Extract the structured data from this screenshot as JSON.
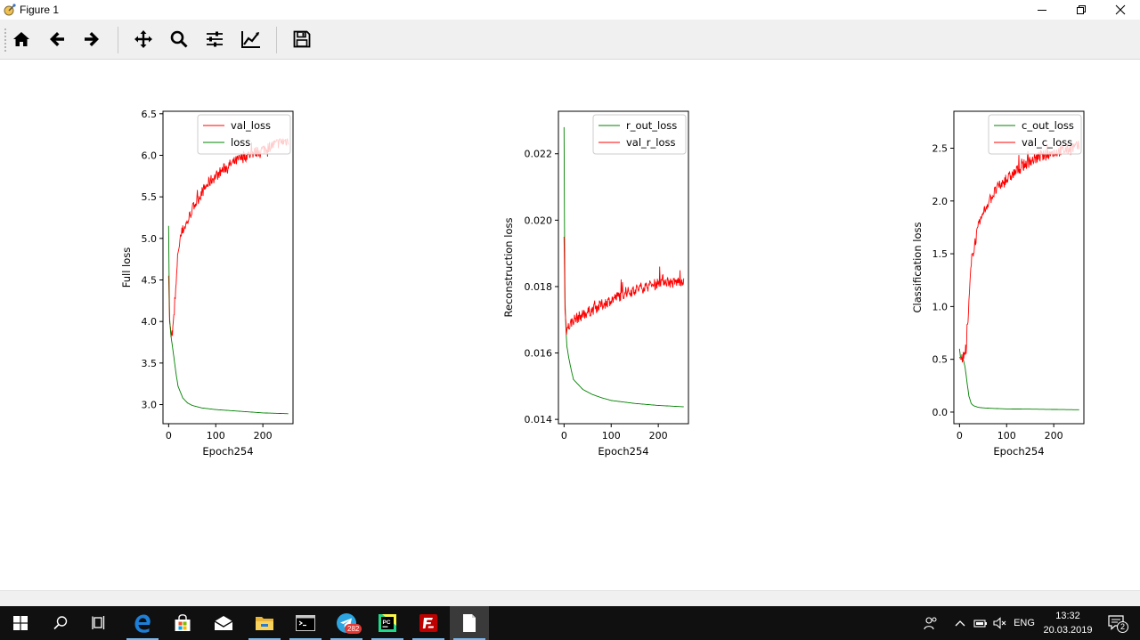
{
  "window": {
    "title": "Figure 1",
    "icon": "matplotlib-figure-icon",
    "controls": [
      "minimize-icon",
      "restore-icon",
      "close-icon"
    ]
  },
  "toolbar": {
    "buttons": [
      {
        "name": "home-button",
        "icon": "home-icon"
      },
      {
        "name": "back-button",
        "icon": "arrow-left-icon"
      },
      {
        "name": "forward-button",
        "icon": "arrow-right-icon"
      },
      {
        "name": "pan-button",
        "icon": "move-icon"
      },
      {
        "name": "zoom-button",
        "icon": "magnifier-icon"
      },
      {
        "name": "subplots-button",
        "icon": "sliders-icon"
      },
      {
        "name": "edit-axes-button",
        "icon": "line-chart-icon"
      },
      {
        "name": "save-button",
        "icon": "floppy-disk-icon"
      }
    ]
  },
  "colors": {
    "val_color": "#ff0000",
    "train_color": "#008000",
    "toolbar_bg": "#f0f0f0",
    "taskbar_bg": "#101010"
  },
  "chart_data": [
    {
      "type": "line",
      "xlabel": "Epoch254",
      "ylabel": "Full loss",
      "xlim": [
        -12,
        264
      ],
      "ylim": [
        2.77,
        6.53
      ],
      "xticks": [
        0,
        100,
        200
      ],
      "yticks": [
        "3.0",
        "3.5",
        "4.0",
        "4.5",
        "5.0",
        "5.5",
        "6.0",
        "6.5"
      ],
      "ytick_values": [
        3.0,
        3.5,
        4.0,
        4.5,
        5.0,
        5.5,
        6.0,
        6.5
      ],
      "legend_position": "top-right",
      "series": [
        {
          "name": "val_loss",
          "color": "#ff0000",
          "noisy": true,
          "x": [
            0,
            2,
            5,
            8,
            12,
            16,
            20,
            25,
            30,
            40,
            50,
            60,
            70,
            80,
            90,
            100,
            120,
            140,
            160,
            180,
            200,
            220,
            240,
            254
          ],
          "y": [
            4.55,
            4.0,
            3.88,
            3.85,
            4.1,
            4.45,
            4.85,
            5.0,
            5.1,
            5.2,
            5.35,
            5.45,
            5.55,
            5.63,
            5.7,
            5.75,
            5.85,
            5.92,
            5.98,
            6.03,
            6.07,
            6.12,
            6.16,
            6.18
          ]
        },
        {
          "name": "loss",
          "color": "#008000",
          "noisy": false,
          "x": [
            0,
            1,
            2,
            4,
            6,
            10,
            15,
            20,
            25,
            30,
            40,
            50,
            70,
            100,
            150,
            200,
            254
          ],
          "y": [
            5.15,
            4.5,
            4.05,
            3.88,
            3.78,
            3.62,
            3.4,
            3.22,
            3.15,
            3.08,
            3.02,
            2.99,
            2.96,
            2.94,
            2.92,
            2.9,
            2.89
          ]
        }
      ]
    },
    {
      "type": "line",
      "xlabel": "Epoch254",
      "ylabel": "Reconstruction loss",
      "xlim": [
        -12,
        264
      ],
      "ylim": [
        0.01387,
        0.02328
      ],
      "xticks": [
        0,
        100,
        200
      ],
      "yticks": [
        "0.014",
        "0.016",
        "0.018",
        "0.020",
        "0.022"
      ],
      "ytick_values": [
        0.014,
        0.016,
        0.018,
        0.02,
        0.022
      ],
      "legend_position": "top-right",
      "series": [
        {
          "name": "r_out_loss",
          "color": "#008000",
          "noisy": false,
          "x": [
            0,
            1,
            2,
            4,
            6,
            10,
            15,
            20,
            30,
            40,
            60,
            80,
            100,
            150,
            200,
            254
          ],
          "y": [
            0.0228,
            0.0195,
            0.0176,
            0.0167,
            0.0162,
            0.01585,
            0.0155,
            0.0152,
            0.01505,
            0.0149,
            0.01475,
            0.01465,
            0.01457,
            0.01448,
            0.01442,
            0.01438
          ]
        },
        {
          "name": "val_r_loss",
          "color": "#ff0000",
          "noisy": true,
          "x": [
            0,
            2,
            5,
            10,
            20,
            40,
            60,
            80,
            100,
            130,
            160,
            190,
            210,
            230,
            254
          ],
          "y": [
            0.0195,
            0.0173,
            0.0167,
            0.0168,
            0.017,
            0.01715,
            0.0173,
            0.01745,
            0.0176,
            0.0178,
            0.01795,
            0.01805,
            0.0182,
            0.0181,
            0.0182
          ]
        }
      ]
    },
    {
      "type": "line",
      "xlabel": "Epoch254",
      "ylabel": "Classification loss",
      "xlim": [
        -12,
        264
      ],
      "ylim": [
        -0.11,
        2.85
      ],
      "xticks": [
        0,
        100,
        200
      ],
      "yticks": [
        "0.0",
        "0.5",
        "1.0",
        "1.5",
        "2.0",
        "2.5"
      ],
      "ytick_values": [
        0.0,
        0.5,
        1.0,
        1.5,
        2.0,
        2.5
      ],
      "legend_position": "top-right",
      "series": [
        {
          "name": "c_out_loss",
          "color": "#008000",
          "noisy": false,
          "x": [
            0,
            2,
            5,
            8,
            12,
            16,
            20,
            25,
            30,
            40,
            50,
            70,
            100,
            150,
            200,
            254
          ],
          "y": [
            0.6,
            0.52,
            0.52,
            0.5,
            0.42,
            0.28,
            0.15,
            0.08,
            0.06,
            0.045,
            0.04,
            0.035,
            0.03,
            0.028,
            0.025,
            0.022
          ]
        },
        {
          "name": "val_c_loss",
          "color": "#ff0000",
          "noisy": true,
          "x": [
            0,
            3,
            6,
            10,
            14,
            18,
            22,
            26,
            30,
            35,
            40,
            50,
            60,
            70,
            80,
            100,
            120,
            140,
            160,
            180,
            200,
            220,
            240,
            254
          ],
          "y": [
            0.52,
            0.5,
            0.5,
            0.52,
            0.6,
            0.85,
            1.2,
            1.45,
            1.55,
            1.65,
            1.75,
            1.88,
            1.98,
            2.05,
            2.12,
            2.2,
            2.28,
            2.35,
            2.4,
            2.43,
            2.46,
            2.48,
            2.5,
            2.52
          ]
        }
      ]
    }
  ],
  "taskbar": {
    "apps": [
      {
        "name": "start-button",
        "icon": "windows-logo-icon"
      },
      {
        "name": "search-button",
        "icon": "search-icon"
      },
      {
        "name": "task-view-button",
        "icon": "task-view-icon"
      },
      {
        "name": "edge-app",
        "icon": "edge-browser-icon"
      },
      {
        "name": "store-app",
        "icon": "store-bag-icon"
      },
      {
        "name": "mail-app",
        "icon": "mail-icon"
      },
      {
        "name": "explorer-app",
        "icon": "folder-icon"
      },
      {
        "name": "terminal-app",
        "icon": "console-icon"
      },
      {
        "name": "telegram-app",
        "icon": "telegram-icon",
        "badge": "282"
      },
      {
        "name": "pycharm-app",
        "icon": "pycharm-icon"
      },
      {
        "name": "filezilla-app",
        "icon": "filezilla-icon"
      },
      {
        "name": "figure-app",
        "icon": "document-icon"
      }
    ],
    "tray": {
      "language": "ENG",
      "time": "13:32",
      "date": "20.03.2019",
      "notifications": "2"
    }
  }
}
